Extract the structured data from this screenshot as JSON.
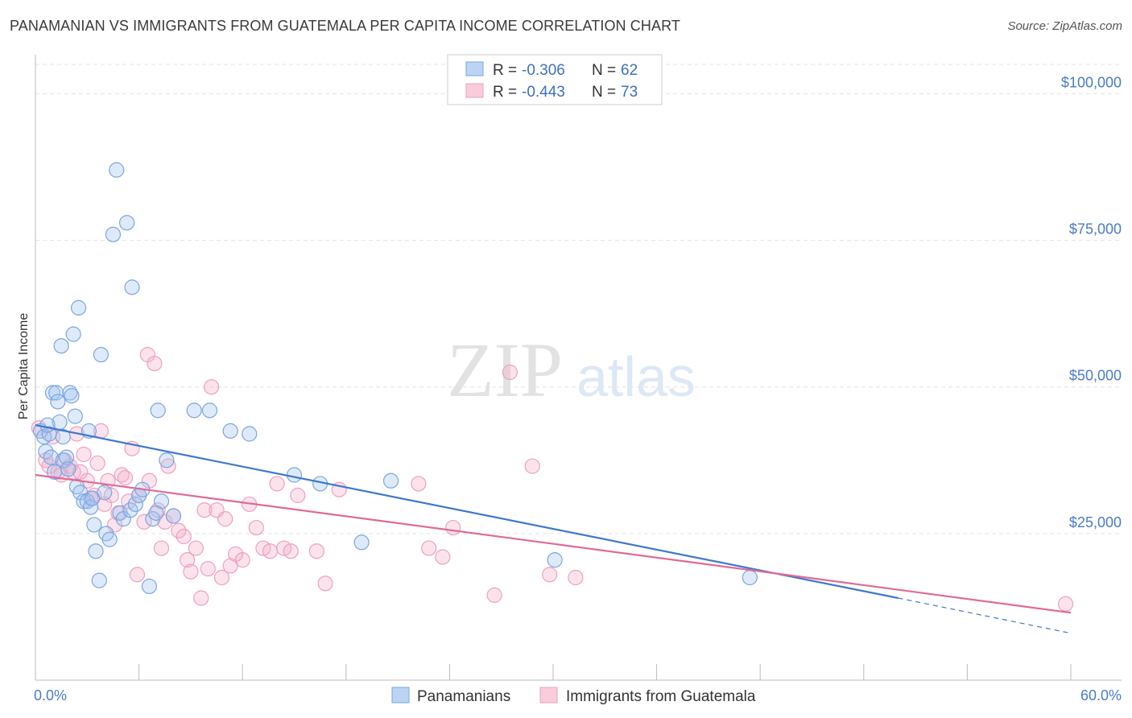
{
  "chart_data": {
    "type": "scatter",
    "title": "PANAMANIAN VS IMMIGRANTS FROM GUATEMALA PER CAPITA INCOME CORRELATION CHART",
    "source": "Source: ZipAtlas.com",
    "ylabel": "Per Capita Income",
    "xlabel": "",
    "xlim": [
      0,
      60
    ],
    "ylim": [
      0,
      105000
    ],
    "x_tick_labels": [
      "0.0%",
      "60.0%"
    ],
    "y_ticks": [
      25000,
      50000,
      75000,
      100000
    ],
    "y_tick_labels": [
      "$25,000",
      "$50,000",
      "$75,000",
      "$100,000"
    ],
    "grid": true,
    "watermark": {
      "zip": "ZIP",
      "atlas": "atlas"
    },
    "legend": [
      {
        "r_label": "R = ",
        "r_value": "-0.306",
        "n_label": "N = ",
        "n_value": "62"
      },
      {
        "r_label": "R = ",
        "r_value": "-0.443",
        "n_label": "N = ",
        "n_value": "73"
      }
    ],
    "series": [
      {
        "name": "Panamanians",
        "color": "#7aa6e0",
        "line_color": "#3d78d0",
        "trend": {
          "x0": 0,
          "y0": 43500,
          "x1": 50,
          "y1": 14000,
          "dash_to_x": 60,
          "dash_to_y": 8000
        },
        "points": [
          [
            0.3,
            42500
          ],
          [
            0.5,
            41500
          ],
          [
            0.6,
            39000
          ],
          [
            0.8,
            42000
          ],
          [
            0.9,
            38000
          ],
          [
            1.1,
            35500
          ],
          [
            1.0,
            49000
          ],
          [
            1.2,
            49000
          ],
          [
            1.3,
            47500
          ],
          [
            1.4,
            44000
          ],
          [
            1.6,
            41500
          ],
          [
            1.6,
            37500
          ],
          [
            1.8,
            38000
          ],
          [
            2.0,
            49000
          ],
          [
            2.1,
            48500
          ],
          [
            2.2,
            59000
          ],
          [
            2.3,
            45000
          ],
          [
            2.4,
            33000
          ],
          [
            2.5,
            63500
          ],
          [
            2.6,
            32000
          ],
          [
            2.8,
            30500
          ],
          [
            3.0,
            30500
          ],
          [
            3.1,
            42500
          ],
          [
            3.2,
            29500
          ],
          [
            3.4,
            26500
          ],
          [
            3.5,
            22000
          ],
          [
            3.7,
            17000
          ],
          [
            3.8,
            55500
          ],
          [
            4.0,
            32000
          ],
          [
            4.1,
            25000
          ],
          [
            4.3,
            24000
          ],
          [
            4.5,
            76000
          ],
          [
            4.7,
            87000
          ],
          [
            4.9,
            28500
          ],
          [
            5.1,
            27500
          ],
          [
            5.3,
            78000
          ],
          [
            5.5,
            29000
          ],
          [
            5.6,
            67000
          ],
          [
            5.8,
            30000
          ],
          [
            6.0,
            31500
          ],
          [
            6.2,
            32500
          ],
          [
            6.6,
            16000
          ],
          [
            6.8,
            27500
          ],
          [
            7.1,
            46000
          ],
          [
            7.3,
            30500
          ],
          [
            7.6,
            37500
          ],
          [
            8.0,
            28000
          ],
          [
            9.2,
            46000
          ],
          [
            10.1,
            46000
          ],
          [
            11.3,
            42500
          ],
          [
            12.4,
            42000
          ],
          [
            15.0,
            35000
          ],
          [
            16.5,
            33500
          ],
          [
            18.9,
            23500
          ],
          [
            20.6,
            34000
          ],
          [
            1.5,
            57000
          ],
          [
            0.7,
            43500
          ],
          [
            1.9,
            36000
          ],
          [
            3.3,
            31000
          ],
          [
            7.0,
            28500
          ],
          [
            30.1,
            20500
          ],
          [
            41.4,
            17500
          ]
        ]
      },
      {
        "name": "Immigrants from Guatemala",
        "color": "#f0a0bc",
        "line_color": "#e06a94",
        "trend": {
          "x0": 0,
          "y0": 35000,
          "x1": 60,
          "y1": 11500
        },
        "points": [
          [
            0.2,
            43000
          ],
          [
            0.6,
            37500
          ],
          [
            0.8,
            36500
          ],
          [
            1.0,
            41500
          ],
          [
            1.3,
            35500
          ],
          [
            1.5,
            35000
          ],
          [
            1.7,
            37500
          ],
          [
            2.0,
            36500
          ],
          [
            2.2,
            35500
          ],
          [
            2.4,
            42000
          ],
          [
            2.6,
            35500
          ],
          [
            2.8,
            38500
          ],
          [
            3.0,
            34000
          ],
          [
            3.2,
            31000
          ],
          [
            3.4,
            31500
          ],
          [
            3.6,
            37000
          ],
          [
            3.8,
            42500
          ],
          [
            4.0,
            30000
          ],
          [
            4.2,
            34000
          ],
          [
            4.4,
            31500
          ],
          [
            4.6,
            26500
          ],
          [
            4.8,
            28500
          ],
          [
            5.0,
            35000
          ],
          [
            5.2,
            34500
          ],
          [
            5.4,
            30500
          ],
          [
            5.6,
            39500
          ],
          [
            5.9,
            18000
          ],
          [
            6.0,
            31500
          ],
          [
            6.3,
            27000
          ],
          [
            6.5,
            55500
          ],
          [
            6.6,
            34000
          ],
          [
            6.9,
            54000
          ],
          [
            7.1,
            29000
          ],
          [
            7.3,
            22500
          ],
          [
            7.5,
            27000
          ],
          [
            7.7,
            36500
          ],
          [
            8.0,
            28000
          ],
          [
            8.3,
            25500
          ],
          [
            8.6,
            24500
          ],
          [
            8.8,
            20500
          ],
          [
            9.0,
            18500
          ],
          [
            9.3,
            22500
          ],
          [
            9.6,
            14000
          ],
          [
            9.8,
            29000
          ],
          [
            10.0,
            19000
          ],
          [
            10.2,
            50000
          ],
          [
            10.5,
            29000
          ],
          [
            10.8,
            17500
          ],
          [
            11.0,
            27500
          ],
          [
            11.3,
            19500
          ],
          [
            11.6,
            21500
          ],
          [
            12.0,
            20500
          ],
          [
            12.4,
            30000
          ],
          [
            12.8,
            26000
          ],
          [
            13.2,
            22500
          ],
          [
            13.6,
            22000
          ],
          [
            14.0,
            33500
          ],
          [
            14.4,
            22500
          ],
          [
            14.8,
            22000
          ],
          [
            15.2,
            31500
          ],
          [
            16.3,
            22000
          ],
          [
            16.8,
            16500
          ],
          [
            17.6,
            32500
          ],
          [
            22.8,
            22500
          ],
          [
            23.6,
            21000
          ],
          [
            24.2,
            26000
          ],
          [
            26.6,
            14500
          ],
          [
            27.5,
            52500
          ],
          [
            28.8,
            36500
          ],
          [
            29.8,
            18000
          ],
          [
            22.2,
            33500
          ],
          [
            31.3,
            17500
          ],
          [
            59.7,
            13000
          ]
        ]
      }
    ]
  }
}
